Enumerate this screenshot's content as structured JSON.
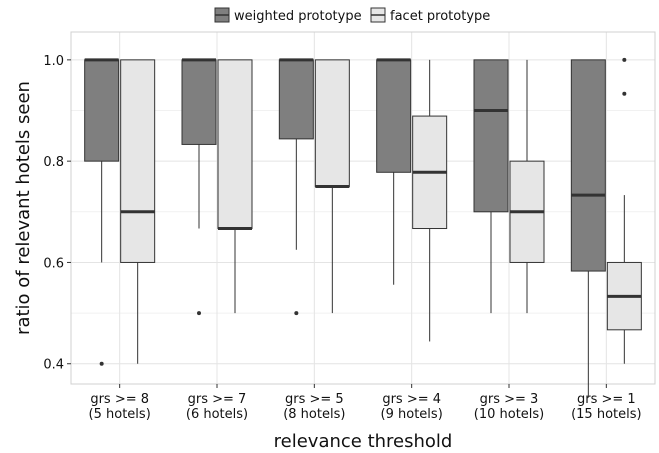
{
  "chart_data": {
    "type": "box",
    "xlabel": "relevance threshold",
    "ylabel": "ratio of relevant hotels seen",
    "ylim": [
      0.36,
      1.055
    ],
    "yticks": [
      0.4,
      0.6,
      0.8,
      1.0
    ],
    "ytick_labels": [
      "0.4",
      "0.6",
      "0.8",
      "1.0"
    ],
    "grid": true,
    "legend_position": "top",
    "categories": [
      {
        "line1": "grs >= 8",
        "line2": "(5 hotels)"
      },
      {
        "line1": "grs >= 7",
        "line2": "(6 hotels)"
      },
      {
        "line1": "grs >= 5",
        "line2": "(8 hotels)"
      },
      {
        "line1": "grs >= 4",
        "line2": "(9 hotels)"
      },
      {
        "line1": "grs >= 3",
        "line2": "(10 hotels)"
      },
      {
        "line1": "grs >= 1",
        "line2": "(15 hotels)"
      }
    ],
    "series": [
      {
        "name": "weighted prototype",
        "color": "#7f7f7f",
        "boxes": [
          {
            "whisker_low": 0.6,
            "q1": 0.8,
            "median": 1.0,
            "q3": 1.0,
            "whisker_high": 1.0,
            "outliers": [
              0.4
            ]
          },
          {
            "whisker_low": 0.667,
            "q1": 0.833,
            "median": 1.0,
            "q3": 1.0,
            "whisker_high": 1.0,
            "outliers": [
              0.5
            ]
          },
          {
            "whisker_low": 0.625,
            "q1": 0.844,
            "median": 1.0,
            "q3": 1.0,
            "whisker_high": 1.0,
            "outliers": [
              0.5
            ]
          },
          {
            "whisker_low": 0.556,
            "q1": 0.778,
            "median": 1.0,
            "q3": 1.0,
            "whisker_high": 1.0,
            "outliers": []
          },
          {
            "whisker_low": 0.5,
            "q1": 0.7,
            "median": 0.9,
            "q3": 1.0,
            "whisker_high": 1.0,
            "outliers": []
          },
          {
            "whisker_low": 0.333,
            "q1": 0.583,
            "median": 0.733,
            "q3": 1.0,
            "whisker_high": 1.0,
            "outliers": []
          }
        ]
      },
      {
        "name": "facet prototype",
        "color": "#e6e6e6",
        "boxes": [
          {
            "whisker_low": 0.4,
            "q1": 0.6,
            "median": 0.7,
            "q3": 1.0,
            "whisker_high": 1.0,
            "outliers": []
          },
          {
            "whisker_low": 0.5,
            "q1": 0.667,
            "median": 0.667,
            "q3": 1.0,
            "whisker_high": 1.0,
            "outliers": []
          },
          {
            "whisker_low": 0.5,
            "q1": 0.75,
            "median": 0.75,
            "q3": 1.0,
            "whisker_high": 1.0,
            "outliers": []
          },
          {
            "whisker_low": 0.444,
            "q1": 0.667,
            "median": 0.778,
            "q3": 0.889,
            "whisker_high": 1.0,
            "outliers": []
          },
          {
            "whisker_low": 0.5,
            "q1": 0.6,
            "median": 0.7,
            "q3": 0.8,
            "whisker_high": 1.0,
            "outliers": []
          },
          {
            "whisker_low": 0.4,
            "q1": 0.467,
            "median": 0.533,
            "q3": 0.6,
            "whisker_high": 0.733,
            "outliers": [
              0.933,
              1.0
            ]
          }
        ]
      }
    ]
  }
}
